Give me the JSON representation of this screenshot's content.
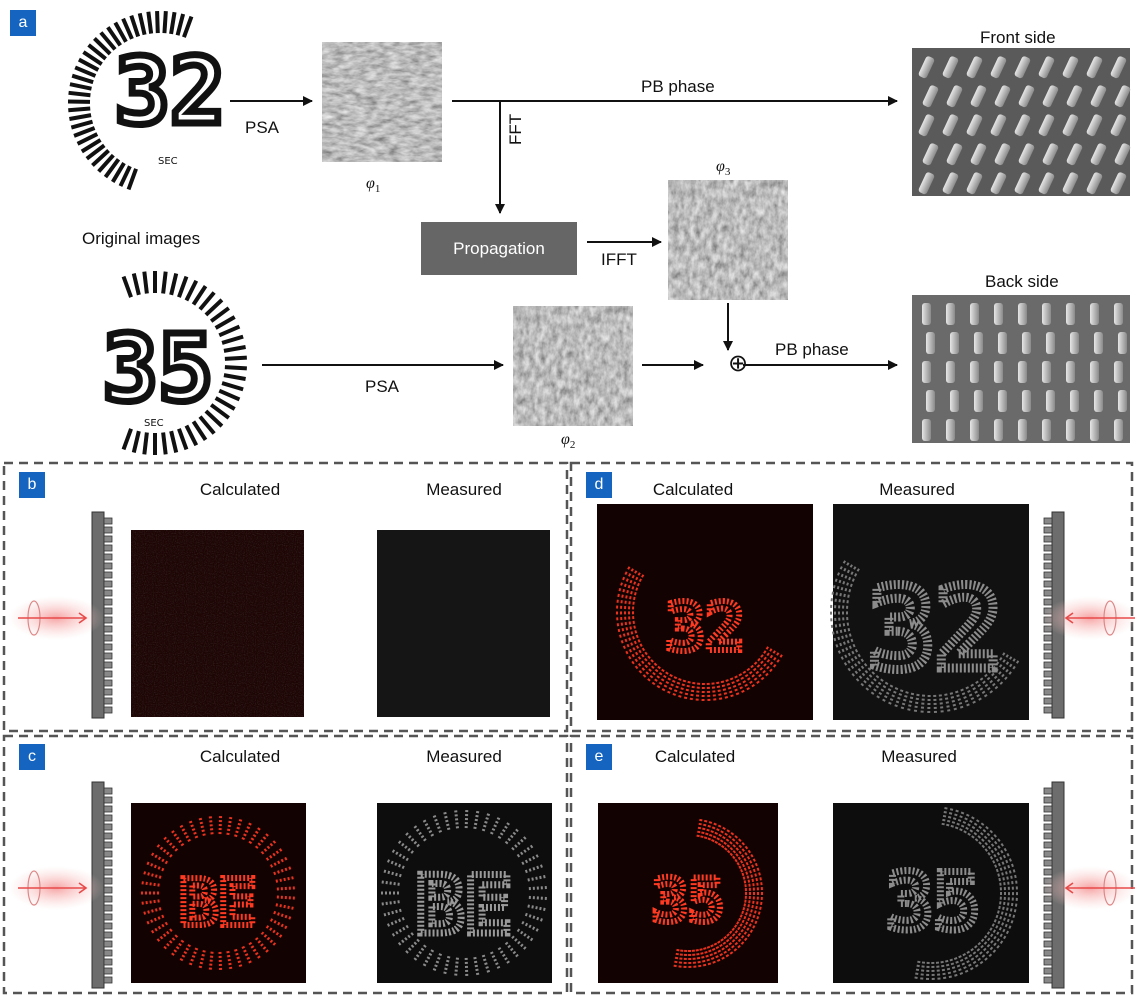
{
  "panel_a": {
    "badge": "a",
    "original_images_label": "Original images",
    "digits_top": "32",
    "digits_bottom": "35",
    "sec_label": "SEC",
    "psa_top": "PSA",
    "psa_bottom": "PSA",
    "phi1_base": "φ",
    "phi1_sub": "1",
    "phi2_base": "φ",
    "phi2_sub": "2",
    "phi3_base": "φ",
    "phi3_sub": "3",
    "fft": "FFT",
    "ifft": "IFFT",
    "propagation": "Propagation",
    "pb_phase_top": "PB phase",
    "pb_phase_bottom": "PB phase",
    "front_side": "Front side",
    "back_side": "Back side",
    "oplus": "⊕"
  },
  "panel_b": {
    "badge": "b",
    "calculated": "Calculated",
    "measured": "Measured"
  },
  "panel_c": {
    "badge": "c",
    "calculated": "Calculated",
    "measured": "Measured",
    "digits": "BE"
  },
  "panel_d": {
    "badge": "d",
    "calculated": "Calculated",
    "measured": "Measured",
    "digits": "32"
  },
  "panel_e": {
    "badge": "e",
    "calculated": "Calculated",
    "measured": "Measured",
    "digits": "35"
  },
  "colors": {
    "badge": "#1565c0",
    "calculated_glow": "#ff2a1a",
    "measured_glow": "#bdbdbd",
    "beam": "#f06b6b",
    "propagation_box": "#666666"
  }
}
